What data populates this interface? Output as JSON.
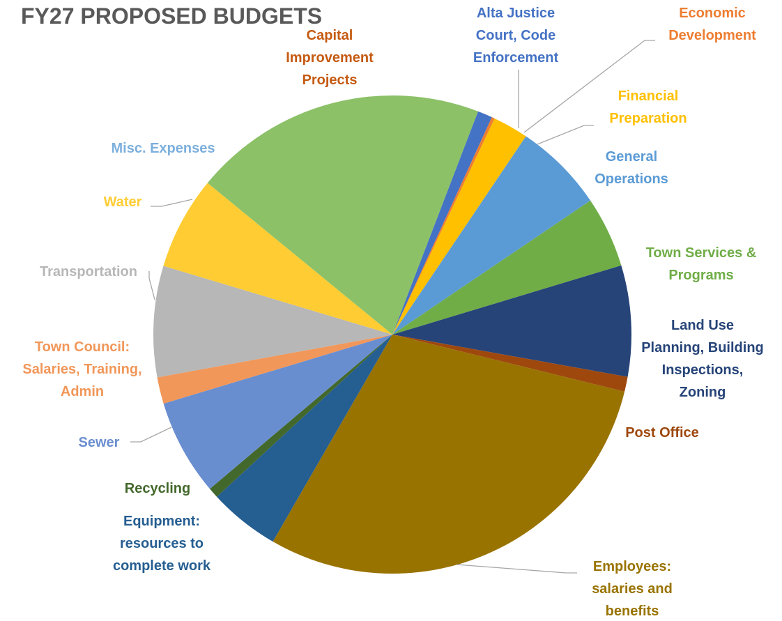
{
  "chart_data": {
    "type": "pie",
    "title": "FY27 PROPOSED BUDGETS",
    "start_angle_deg": 21,
    "direction": "clockwise",
    "slices": [
      {
        "name": "Alta Justice Court, Code Enforcement",
        "lines": [
          "Alta Justice",
          "Court, Code",
          "Enforcement"
        ],
        "value": 1.0,
        "color": "#4472c4",
        "label_color": "#4472c4"
      },
      {
        "name": "Economic Development",
        "lines": [
          "Economic",
          "Development"
        ],
        "value": 0.2,
        "color": "#ed7d31",
        "label_color": "#ed7d31"
      },
      {
        "name": "Financial Preparation",
        "lines": [
          "Financial",
          "Preparation"
        ],
        "value": 2.4,
        "color": "#ffc000",
        "label_color": "#ffc000"
      },
      {
        "name": "General Operations",
        "lines": [
          "General",
          "Operations"
        ],
        "value": 6.1,
        "color": "#5b9bd5",
        "label_color": "#5b9bd5"
      },
      {
        "name": "Town Services & Programs",
        "lines": [
          "Town Services &",
          "Programs"
        ],
        "value": 4.8,
        "color": "#70ad47",
        "label_color": "#70ad47"
      },
      {
        "name": "Land Use Planning, Building Inspections, Zoning",
        "lines": [
          "Land Use",
          "Planning, Building",
          "Inspections,",
          "Zoning"
        ],
        "value": 7.5,
        "color": "#264478",
        "label_color": "#264478"
      },
      {
        "name": "Post Office",
        "lines": [
          "Post Office"
        ],
        "value": 1.0,
        "color": "#9e480e",
        "label_color": "#9e480e"
      },
      {
        "name": "Employees: salaries and benefits",
        "lines": [
          "Employees:",
          "salaries and",
          "benefits"
        ],
        "value": 29.5,
        "color": "#997300",
        "label_color": "#997300"
      },
      {
        "name": "Equipment: resources to complete work",
        "lines": [
          "Equipment:",
          "resources to",
          "complete work"
        ],
        "value": 4.8,
        "color": "#255e91",
        "label_color": "#255e91"
      },
      {
        "name": "Recycling",
        "lines": [
          "Recycling"
        ],
        "value": 0.7,
        "color": "#43682b",
        "label_color": "#43682b"
      },
      {
        "name": "Sewer",
        "lines": [
          "Sewer"
        ],
        "value": 6.5,
        "color": "#698ed0",
        "label_color": "#698ed0"
      },
      {
        "name": "Town Council: Salaries, Training, Admin",
        "lines": [
          "Town Council:",
          "Salaries, Training,",
          "Admin"
        ],
        "value": 1.8,
        "color": "#f1975a",
        "label_color": "#f1975a"
      },
      {
        "name": "Transportation",
        "lines": [
          "Transportation"
        ],
        "value": 7.5,
        "color": "#b7b7b7",
        "label_color": "#b7b7b7"
      },
      {
        "name": "Water",
        "lines": [
          "Water"
        ],
        "value": 6.3,
        "color": "#ffcd33",
        "label_color": "#ffcd33"
      },
      {
        "name": "Misc. Expenses",
        "lines": [
          "Misc. Expenses"
        ],
        "value": 0.0,
        "color": "#7cafdd",
        "label_color": "#7cafdd"
      },
      {
        "name": "Capital Improvement Projects",
        "lines": [
          "Capital",
          "Improvement",
          "Projects"
        ],
        "value": 19.9,
        "color": "#8cc168",
        "label_color": "#c55a11"
      }
    ]
  }
}
